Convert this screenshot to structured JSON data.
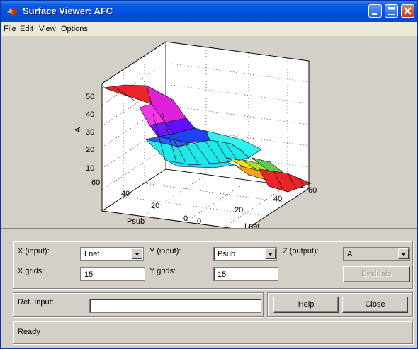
{
  "window": {
    "title": "Surface Viewer: AFC"
  },
  "menu": [
    "File",
    "Edit",
    "View",
    "Options"
  ],
  "plot": {
    "z_label": "A",
    "x_label": "Lnet",
    "y_label": "Psub",
    "z_ticks": [
      "50",
      "40",
      "30",
      "20",
      "10"
    ],
    "x_ticks": [
      "0",
      "20",
      "40",
      "60"
    ],
    "y_ticks": [
      "0",
      "20",
      "40",
      "60"
    ]
  },
  "controls": {
    "x_input_label": "X (input):",
    "x_input_value": "Lnet",
    "y_input_label": "Y (input):",
    "y_input_value": "Psub",
    "z_output_label": "Z (output):",
    "z_output_value": "A",
    "x_grids_label": "X grids:",
    "x_grids_value": "15",
    "y_grids_label": "Y grids:",
    "y_grids_value": "15",
    "evaluate_label": "Evaluate",
    "ref_input_label": "Ref. Input:",
    "ref_input_value": "",
    "help_label": "Help",
    "close_label": "Close"
  },
  "status": {
    "text": "Ready"
  },
  "colors": {
    "titlebar": "#0554e3",
    "surface_top": "#e8262a",
    "surface_mid1": "#e020d8",
    "surface_mid2": "#6010ff",
    "surface_mid3": "#1c44f0",
    "surface_low": "#20e8e8"
  }
}
